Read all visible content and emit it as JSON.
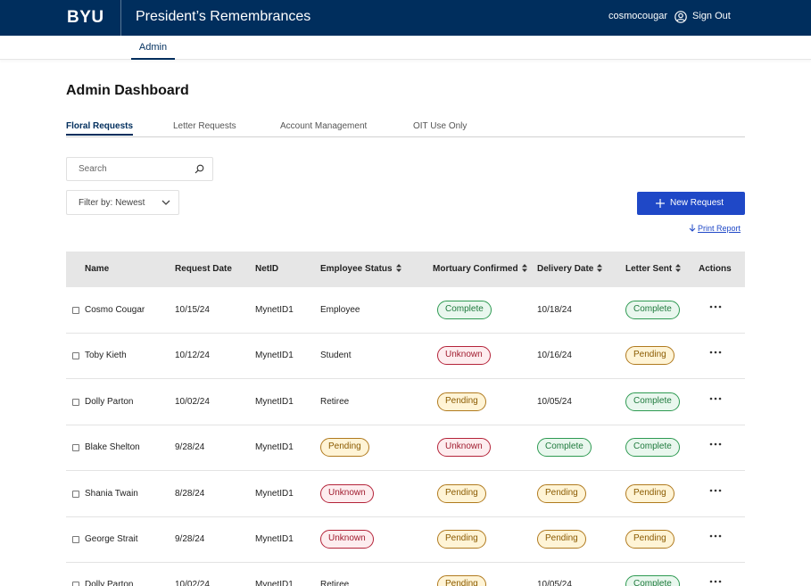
{
  "header": {
    "logo": "BYU",
    "app_title": "President’s Remembrances",
    "username": "cosmocougar",
    "sign_out": "Sign Out"
  },
  "subnav": {
    "item": "Admin"
  },
  "page_title": "Admin Dashboard",
  "tabs": [
    "Floral Requests",
    "Letter Requests",
    "Account Management",
    "OIT Use Only"
  ],
  "search": {
    "placeholder": "Search"
  },
  "filter": {
    "label": "Filter by: Newest"
  },
  "new_request": "New Request",
  "print_report": "Print Report",
  "status_colors": {
    "Complete": {
      "fg": "#1F7A3D",
      "border": "#2E9A52",
      "bg": "#E9F7EE"
    },
    "Pending": {
      "fg": "#8A5A00",
      "border": "#B07A1E",
      "bg": "#FFF4D6"
    },
    "Unknown": {
      "fg": "#A01B2E",
      "border": "#B42339",
      "bg": "#FDEDEF"
    }
  },
  "table": {
    "headers": [
      "Name",
      "Request Date",
      "NetID",
      "Employee Status",
      "Mortuary Confirmed",
      "Delivery Date",
      "Letter Sent",
      "Actions"
    ],
    "rows": [
      {
        "name": "Cosmo Cougar",
        "request_date": "10/15/24",
        "netid": "MynetID1",
        "employee_status": "Employee",
        "mortuary": "Complete",
        "delivery": "10/18/24",
        "letter": "Complete"
      },
      {
        "name": "Toby Kieth",
        "request_date": "10/12/24",
        "netid": "MynetID1",
        "employee_status": "Student",
        "mortuary": "Unknown",
        "delivery": "10/16/24",
        "letter": "Pending"
      },
      {
        "name": "Dolly Parton",
        "request_date": "10/02/24",
        "netid": "MynetID1",
        "employee_status": "Retiree",
        "mortuary": "Pending",
        "delivery": "10/05/24",
        "letter": "Complete"
      },
      {
        "name": "Blake Shelton",
        "request_date": "9/28/24",
        "netid": "MynetID1",
        "employee_status": "Pending",
        "mortuary": "Unknown",
        "delivery": "Complete",
        "letter": "Complete"
      },
      {
        "name": "Shania Twain",
        "request_date": "8/28/24",
        "netid": "MynetID1",
        "employee_status": "Unknown",
        "mortuary": "Pending",
        "delivery": "Pending",
        "letter": "Pending"
      },
      {
        "name": "George Strait",
        "request_date": "9/28/24",
        "netid": "MynetID1",
        "employee_status": "Unknown",
        "mortuary": "Pending",
        "delivery": "Pending",
        "letter": "Pending"
      },
      {
        "name": "Dolly Parton",
        "request_date": "10/02/24",
        "netid": "MynetID1",
        "employee_status": "Retiree",
        "mortuary": "Pending",
        "delivery": "10/05/24",
        "letter": "Complete"
      }
    ]
  }
}
